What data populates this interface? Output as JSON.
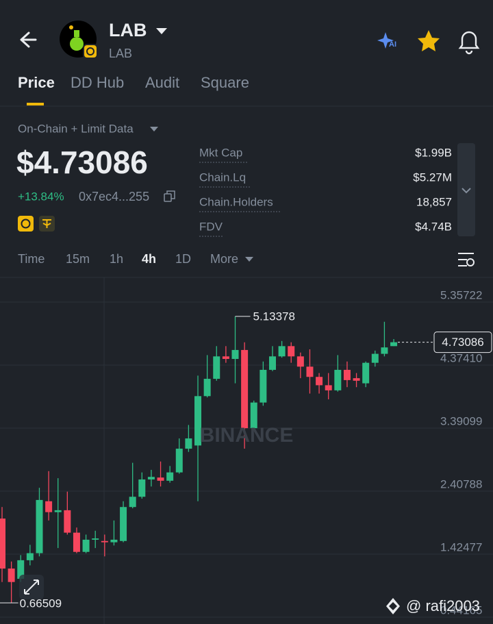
{
  "header": {
    "title": "LAB",
    "subtitle": "LAB"
  },
  "tabs": [
    "Price",
    "DD Hub",
    "Audit",
    "Square"
  ],
  "data_source": "On-Chain + Limit Data",
  "price": "$4.73086",
  "change": "+13.84%",
  "address": "0x7ec4...255",
  "stats": [
    {
      "label": "Mkt Cap",
      "value": "$1.99B"
    },
    {
      "label": "Chain.Lq",
      "value": "$5.27M"
    },
    {
      "label": "Chain.Holders",
      "value": "18,857"
    },
    {
      "label": "FDV",
      "value": "$4.74B"
    }
  ],
  "intervals": [
    "Time",
    "15m",
    "1h",
    "4h",
    "1D",
    "More"
  ],
  "watermark": "BINANCE",
  "credit": "@ rafi2003",
  "chart_data": {
    "type": "candlestick",
    "up_color": "#2ebd85",
    "down_color": "#f6465d",
    "ylim": [
      0.335,
      5.742
    ],
    "yticks": [
      5.35722,
      {
        "value": 4.3741,
        "label": "4.37410"
      },
      3.39099,
      2.40788,
      1.42477,
      0.44165
    ],
    "grid": true,
    "open": [
      1.98,
      1.2,
      1.04,
      1.33,
      1.44,
      2.25,
      2.08,
      2.11,
      1.76,
      1.46,
      1.65,
      1.63,
      1.61,
      1.63,
      2.16,
      2.32,
      2.59,
      2.62,
      2.57,
      2.7,
      3.07,
      3.12,
      3.89,
      4.16,
      4.51,
      4.47,
      4.61,
      3.39,
      3.79,
      4.3,
      4.51,
      4.67,
      4.51,
      4.35,
      4.19,
      4.06,
      3.98,
      4.3,
      4.17,
      4.09,
      4.41,
      4.55,
      4.67
    ],
    "high": [
      2.16,
      1.31,
      1.41,
      1.57,
      2.46,
      2.72,
      2.61,
      2.4,
      1.84,
      1.73,
      1.79,
      1.73,
      1.95,
      2.25,
      2.85,
      2.7,
      2.74,
      2.87,
      2.8,
      3.23,
      3.44,
      4.21,
      4.53,
      4.67,
      4.67,
      5.13378,
      4.73,
      3.82,
      4.43,
      4.67,
      4.75,
      4.73,
      4.57,
      4.62,
      4.25,
      4.25,
      4.53,
      4.43,
      4.25,
      4.43,
      4.6,
      5.05,
      4.78
    ],
    "low": [
      0.99,
      0.66509,
      0.99,
      1.25,
      1.39,
      1.95,
      1.52,
      1.73,
      1.44,
      1.44,
      1.52,
      1.39,
      1.56,
      1.61,
      2.14,
      2.29,
      2.48,
      2.48,
      2.54,
      2.68,
      3.02,
      2.25,
      3.87,
      4.13,
      4.41,
      4.09,
      3.07,
      3.36,
      3.74,
      4.28,
      4.49,
      4.41,
      4.17,
      3.93,
      3.93,
      3.84,
      3.96,
      4.03,
      4.03,
      4.03,
      4.35,
      4.51,
      4.67
    ],
    "close": [
      1.2,
      0.99,
      1.33,
      1.44,
      2.27,
      2.08,
      2.11,
      1.76,
      1.46,
      1.65,
      1.67,
      1.61,
      1.65,
      2.16,
      2.32,
      2.59,
      2.63,
      2.57,
      2.7,
      3.07,
      3.23,
      3.89,
      4.16,
      4.51,
      4.47,
      4.61,
      3.39,
      3.79,
      4.3,
      4.51,
      4.67,
      4.51,
      4.35,
      4.19,
      4.06,
      3.98,
      4.3,
      4.14,
      4.13,
      4.41,
      4.55,
      4.65,
      4.73086
    ]
  }
}
